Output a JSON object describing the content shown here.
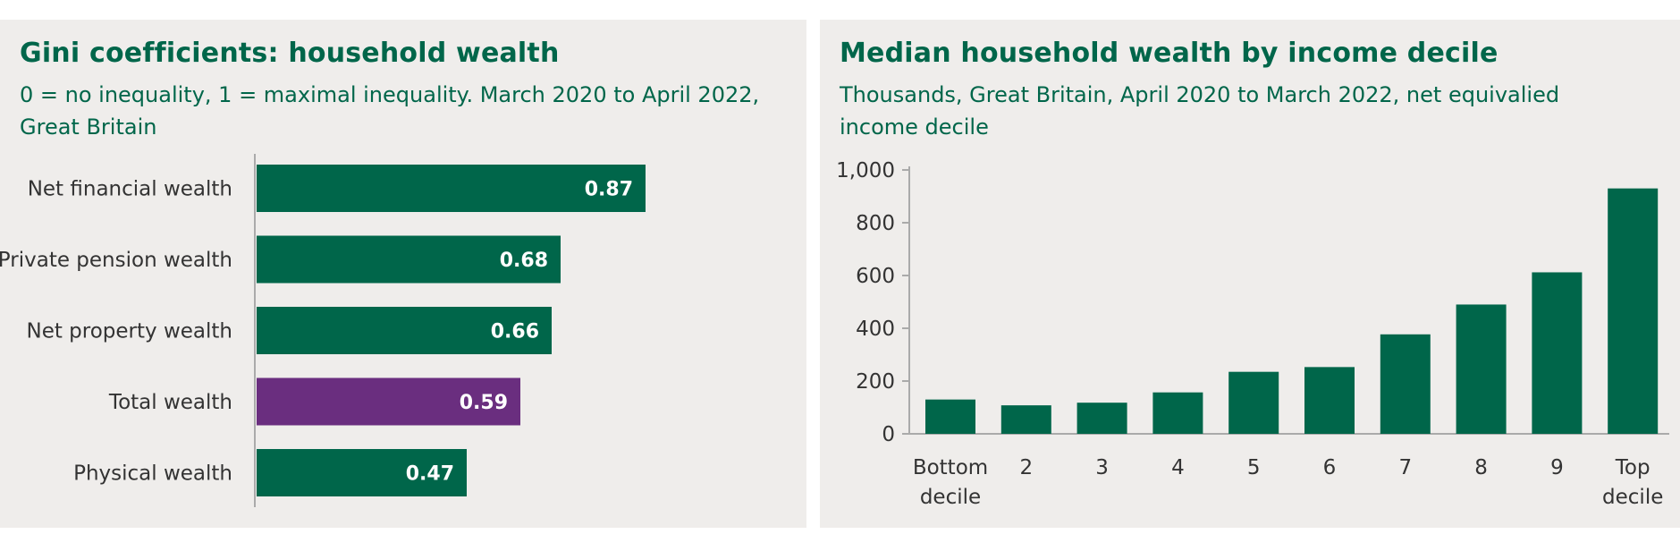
{
  "colors": {
    "green": "#00664a",
    "purple": "#6a2e7f",
    "text_green": "#00664a",
    "panel_bg": "#efedeb",
    "axis": "#aaaaaa"
  },
  "chart_data": [
    {
      "type": "bar",
      "orientation": "horizontal",
      "title": "Gini coefficients: household wealth",
      "subtitle": "0 = no inequality, 1 = maximal inequality. March 2020 to April 2022, Great Britain",
      "categories": [
        "Net financial wealth",
        "Private pension wealth",
        "Net property wealth",
        "Total wealth",
        "Physical wealth"
      ],
      "values": [
        0.87,
        0.68,
        0.66,
        0.59,
        0.47
      ],
      "value_labels": [
        "0.87",
        "0.68",
        "0.66",
        "0.59",
        "0.47"
      ],
      "highlight": "Total wealth",
      "xlim": [
        0,
        1
      ],
      "grid": false,
      "legend": "none"
    },
    {
      "type": "bar",
      "orientation": "vertical",
      "title": "Median household wealth by income decile",
      "subtitle": "Thousands, Great Britain, April 2020 to March 2022, net equivalied income decile",
      "categories": [
        {
          "line1": "Bottom",
          "line2": "decile"
        },
        {
          "line1": "2",
          "line2": ""
        },
        {
          "line1": "3",
          "line2": ""
        },
        {
          "line1": "4",
          "line2": ""
        },
        {
          "line1": "5",
          "line2": ""
        },
        {
          "line1": "6",
          "line2": ""
        },
        {
          "line1": "7",
          "line2": ""
        },
        {
          "line1": "8",
          "line2": ""
        },
        {
          "line1": "9",
          "line2": ""
        },
        {
          "line1": "Top",
          "line2": "decile"
        }
      ],
      "values": [
        130,
        108,
        118,
        157,
        235,
        253,
        377,
        490,
        612,
        930
      ],
      "ylim": [
        0,
        1000
      ],
      "yticks": [
        0,
        200,
        400,
        600,
        800,
        1000
      ],
      "ytick_labels": [
        "0",
        "200",
        "400",
        "600",
        "800",
        "1,000"
      ],
      "grid": false,
      "legend": "none"
    }
  ]
}
